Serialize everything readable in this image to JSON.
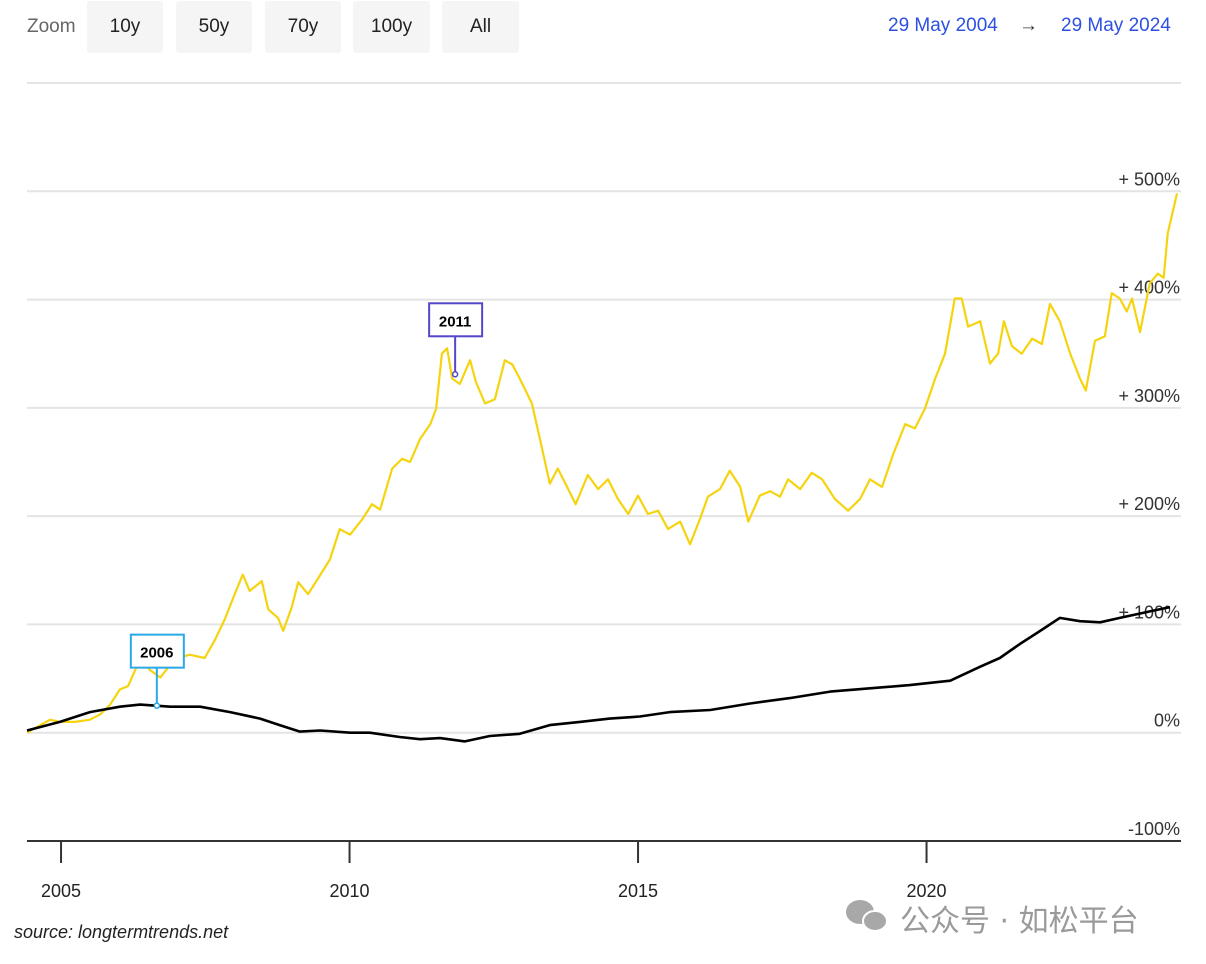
{
  "zoom": {
    "label": "Zoom",
    "buttons": [
      "10y",
      "50y",
      "70y",
      "100y",
      "All"
    ]
  },
  "range": {
    "from": "29 May 2004",
    "arrow": "→",
    "to": "29 May 2024"
  },
  "source": "source: longtermtrends.net",
  "watermark": "公众号 · 如松平台",
  "chart_data": {
    "type": "line",
    "xlim": [
      2004.41,
      2024.41
    ],
    "xticks": [
      2005,
      2010,
      2015,
      2020
    ],
    "ylim": [
      -100,
      600
    ],
    "yticks": [
      {
        "value": -100,
        "label": "-100%"
      },
      {
        "value": 0,
        "label": "0%"
      },
      {
        "value": 100,
        "label": "+ 100%"
      },
      {
        "value": 200,
        "label": "+ 200%"
      },
      {
        "value": 300,
        "label": "+ 300%"
      },
      {
        "value": 400,
        "label": "+ 400%"
      },
      {
        "value": 500,
        "label": "+ 500%"
      }
    ],
    "grid": true,
    "series": [
      {
        "color": "#f5d40f",
        "x": [
          2004.41,
          2004.81,
          2004.98,
          2005.24,
          2005.5,
          2005.68,
          2005.85,
          2006.02,
          2006.16,
          2006.37,
          2006.54,
          2006.72,
          2006.97,
          2007.23,
          2007.49,
          2007.67,
          2007.84,
          2008.01,
          2008.15,
          2008.27,
          2008.48,
          2008.59,
          2008.76,
          2008.85,
          2009.0,
          2009.11,
          2009.28,
          2009.45,
          2009.66,
          2009.83,
          2010.01,
          2010.22,
          2010.39,
          2010.53,
          2010.74,
          2010.91,
          2011.05,
          2011.22,
          2011.4,
          2011.5,
          2011.6,
          2011.69,
          2011.78,
          2011.91,
          2012.09,
          2012.19,
          2012.35,
          2012.52,
          2012.69,
          2012.82,
          2012.95,
          2013.16,
          2013.3,
          2013.47,
          2013.61,
          2013.79,
          2013.92,
          2014.13,
          2014.31,
          2014.48,
          2014.65,
          2014.83,
          2015.0,
          2015.17,
          2015.35,
          2015.52,
          2015.73,
          2015.9,
          2016.07,
          2016.21,
          2016.42,
          2016.59,
          2016.77,
          2016.91,
          2017.11,
          2017.29,
          2017.46,
          2017.6,
          2017.81,
          2018.01,
          2018.19,
          2018.41,
          2018.64,
          2018.85,
          2019.02,
          2019.23,
          2019.42,
          2019.63,
          2019.8,
          2019.97,
          2020.15,
          2020.32,
          2020.49,
          2020.61,
          2020.72,
          2020.93,
          2021.1,
          2021.24,
          2021.34,
          2021.48,
          2021.65,
          2021.83,
          2022.0,
          2022.14,
          2022.31,
          2022.49,
          2022.66,
          2022.76,
          2022.92,
          2023.09,
          2023.21,
          2023.35,
          2023.47,
          2023.56,
          2023.7,
          2023.87,
          2024.01,
          2024.11,
          2024.18,
          2024.34
        ],
        "values": [
          0,
          12,
          10,
          10,
          12,
          17,
          26,
          40,
          43,
          68,
          58,
          51,
          68,
          72,
          69,
          86,
          105,
          128,
          146,
          131,
          140,
          114,
          106,
          94,
          116,
          139,
          128,
          142,
          160,
          188,
          183,
          197,
          211,
          206,
          244,
          253,
          250,
          271,
          285,
          299,
          350,
          355,
          327,
          322,
          344,
          324,
          304,
          308,
          344,
          340,
          327,
          304,
          271,
          230,
          244,
          225,
          211,
          238,
          225,
          234,
          216,
          202,
          219,
          202,
          205,
          188,
          195,
          174,
          197,
          218,
          225,
          242,
          227,
          195,
          219,
          223,
          218,
          234,
          225,
          240,
          234,
          216,
          205,
          216,
          234,
          227,
          257,
          285,
          281,
          299,
          327,
          350,
          401,
          401,
          375,
          380,
          341,
          350,
          380,
          357,
          350,
          364,
          359,
          396,
          380,
          350,
          327,
          316,
          362,
          366,
          406,
          401,
          389,
          401,
          370,
          415,
          424,
          420,
          461,
          498
        ]
      },
      {
        "color": "#000000",
        "x": [
          2004.41,
          2004.98,
          2005.5,
          2006.02,
          2006.37,
          2006.89,
          2007.41,
          2007.93,
          2008.45,
          2008.79,
          2009.14,
          2009.49,
          2010.01,
          2010.35,
          2010.87,
          2011.22,
          2011.57,
          2012.0,
          2012.43,
          2012.95,
          2013.47,
          2013.99,
          2014.51,
          2015.03,
          2015.55,
          2016.25,
          2016.94,
          2017.63,
          2018.33,
          2019.02,
          2019.71,
          2020.41,
          2020.93,
          2021.27,
          2021.62,
          2021.97,
          2022.31,
          2022.66,
          2023.01,
          2023.35,
          2023.87,
          2024.22
        ],
        "values": [
          2,
          10,
          19,
          24,
          26,
          24,
          24,
          19,
          13,
          7,
          1,
          2,
          0,
          0,
          -4,
          -6,
          -5,
          -8,
          -3,
          -1,
          7,
          10,
          13,
          15,
          19,
          21,
          27,
          32,
          38,
          41,
          44,
          48,
          61,
          69,
          82,
          94,
          106,
          103,
          102,
          106,
          112,
          116
        ]
      }
    ],
    "annotations": [
      {
        "text": "2006",
        "x": 2006.66,
        "y": 25,
        "color": "#2aa8e8"
      },
      {
        "text": "2011",
        "x": 2011.83,
        "y": 331,
        "color": "#5548c8"
      }
    ]
  }
}
